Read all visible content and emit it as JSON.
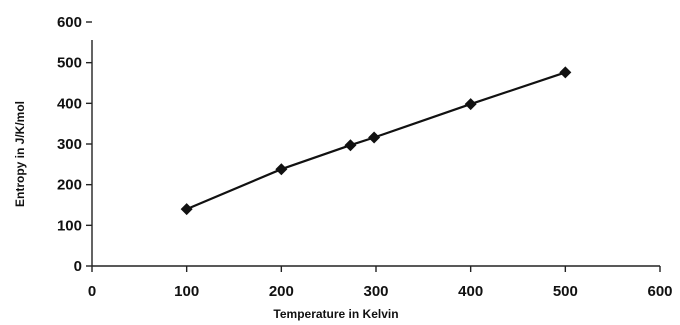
{
  "chart_data": {
    "type": "line",
    "title": "",
    "xlabel": "Temperature in Kelvin",
    "ylabel": "Entropy in J/K/mol",
    "xlim": [
      0,
      600
    ],
    "ylim": [
      0,
      600
    ],
    "x_ticks": [
      0,
      100,
      200,
      300,
      400,
      500,
      600
    ],
    "y_ticks": [
      0,
      100,
      200,
      300,
      400,
      500,
      600
    ],
    "grid": false,
    "legend": "none",
    "series": [
      {
        "marker": "diamond",
        "color": "#111111",
        "points": [
          {
            "x": 100,
            "y": 140
          },
          {
            "x": 200,
            "y": 238
          },
          {
            "x": 273,
            "y": 297
          },
          {
            "x": 298,
            "y": 316
          },
          {
            "x": 400,
            "y": 398
          },
          {
            "x": 500,
            "y": 476
          }
        ]
      }
    ]
  }
}
